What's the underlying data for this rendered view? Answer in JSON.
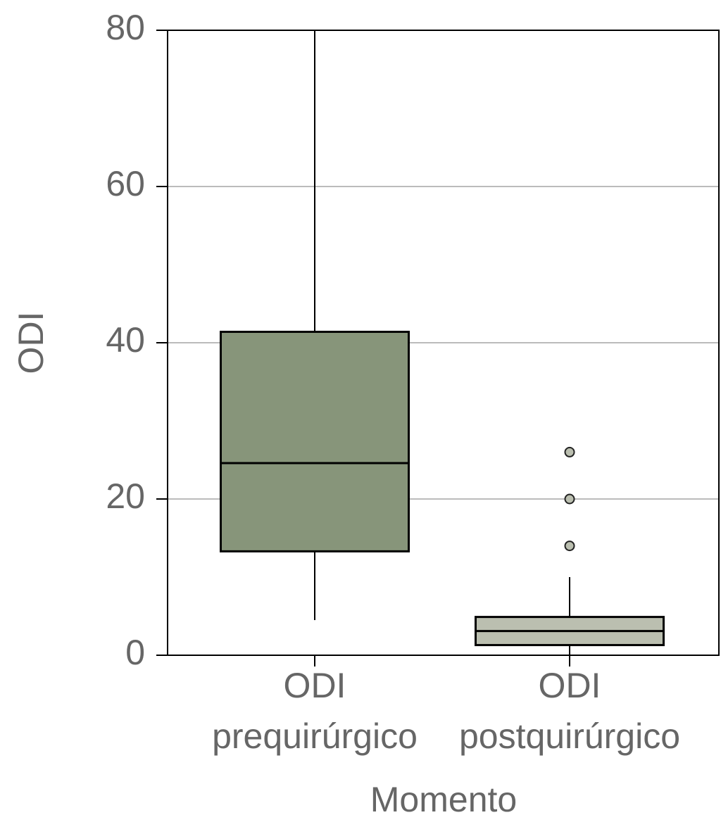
{
  "chart_data": {
    "type": "box",
    "x_label": "Momento",
    "y_label": "ODI",
    "categories": [
      [
        "ODI",
        "prequirúrgico"
      ],
      [
        "ODI",
        "postquirúrgico"
      ]
    ],
    "boxes": [
      {
        "color": "#87957a",
        "min": 4.5,
        "q1": 13.3,
        "median": 24.6,
        "q3": 41.4,
        "max": 80,
        "outliers": []
      },
      {
        "color": "#bbbfb0",
        "min": 0,
        "q1": 1.3,
        "median": 3.1,
        "q3": 4.9,
        "max": 10,
        "outliers": [
          26,
          20,
          14
        ]
      }
    ],
    "ylim": [
      0,
      80
    ],
    "yticks": [
      0,
      20,
      40,
      60,
      80
    ],
    "grid": true
  }
}
